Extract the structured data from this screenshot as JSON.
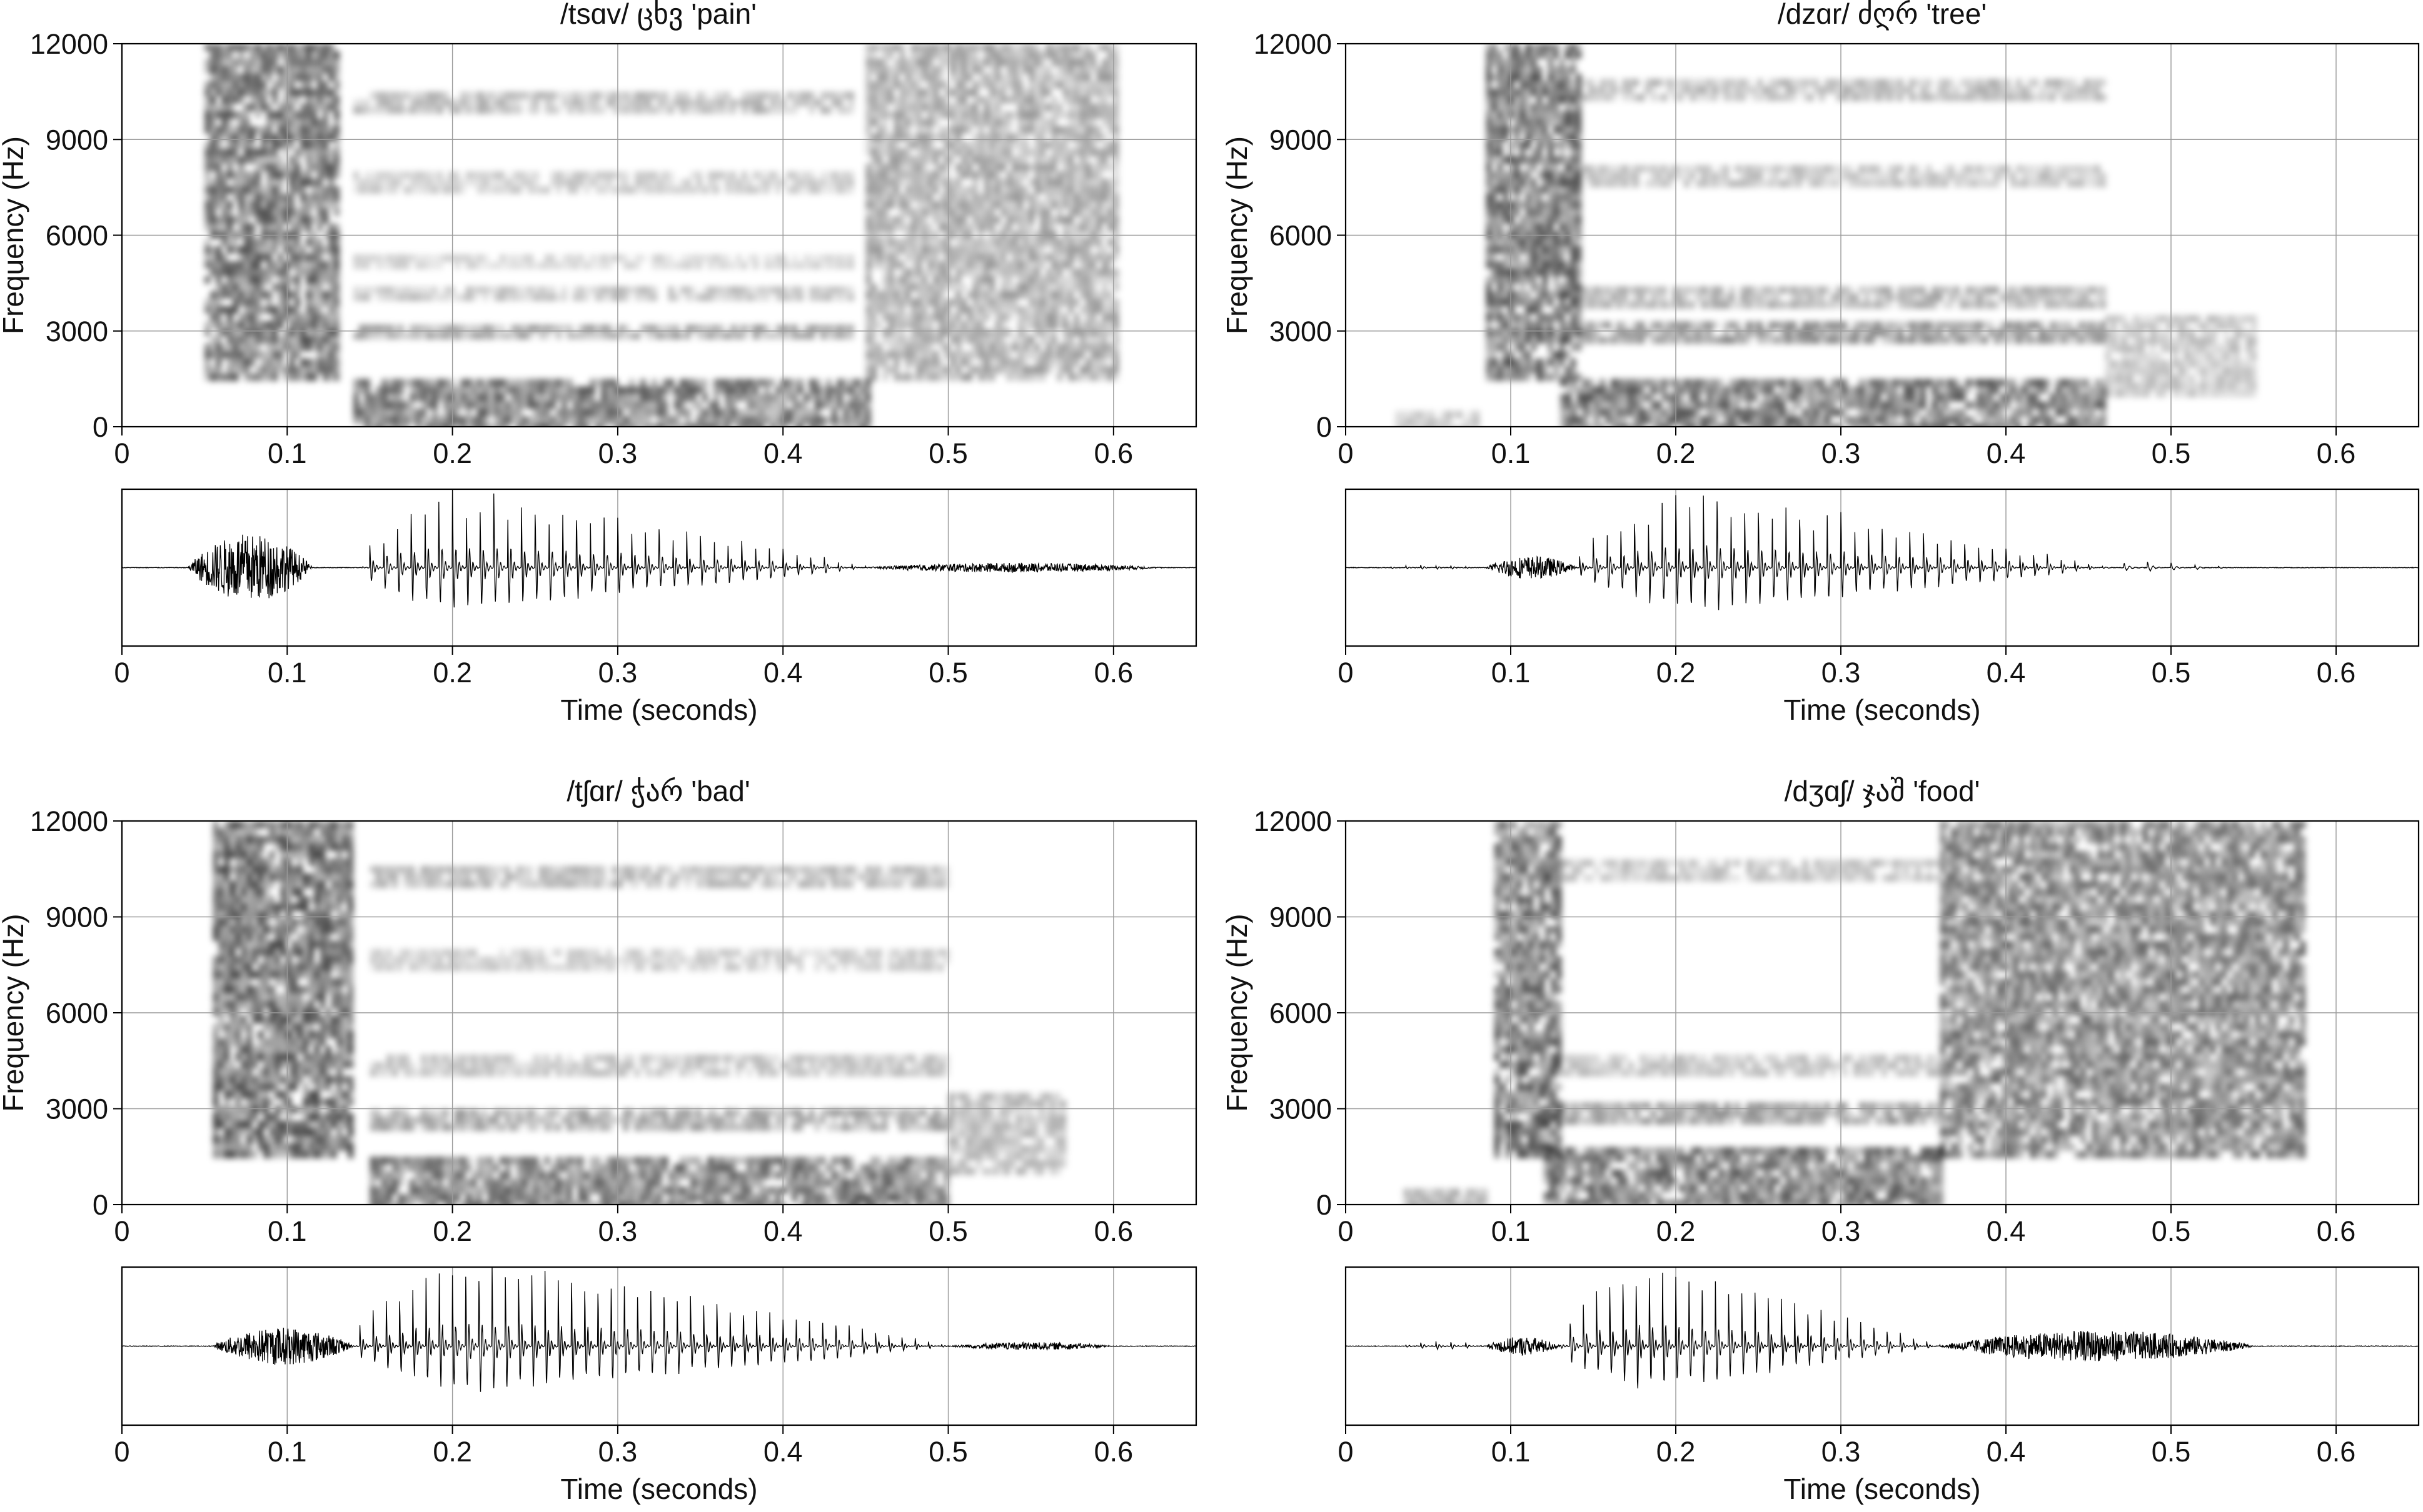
{
  "figure": {
    "panels": [
      {
        "title": "/tsɑv/ ცხვ 'pain'"
      },
      {
        "title": "/dzɑr/ ძღრ 'tree'"
      },
      {
        "title": "/tʃɑr/ ჭარ 'bad'"
      },
      {
        "title": "/dʒɑʃ/ ჯაშ 'food'"
      }
    ]
  },
  "chart_data": [
    {
      "type": "heatmap",
      "kind": "spectrogram",
      "title": "/tsɑv/ ცხვ 'pain'",
      "xlabel": "",
      "ylabel": "Frequency (Hz)",
      "xlim": [
        0,
        0.65
      ],
      "ylim": [
        0,
        12000
      ],
      "x_ticks": [
        0,
        0.1,
        0.2,
        0.3,
        0.4,
        0.5,
        0.6
      ],
      "y_ticks": [
        0,
        3000,
        6000,
        9000,
        12000
      ],
      "grid": true,
      "regions": [
        {
          "label": "frication",
          "t": [
            0.05,
            0.13
          ],
          "f": [
            1500,
            12000
          ],
          "intensity": 0.85
        },
        {
          "label": "vowel",
          "t": [
            0.14,
            0.45
          ],
          "f": [
            0,
            1500
          ],
          "intensity": 0.8
        },
        {
          "label": "formant",
          "t": [
            0.14,
            0.44
          ],
          "f": [
            2800,
            3200
          ],
          "intensity": 0.5
        },
        {
          "label": "formant",
          "t": [
            0.14,
            0.44
          ],
          "f": [
            4000,
            4400
          ],
          "intensity": 0.35
        },
        {
          "label": "formant",
          "t": [
            0.14,
            0.44
          ],
          "f": [
            5000,
            5400
          ],
          "intensity": 0.25
        },
        {
          "label": "formant",
          "t": [
            0.14,
            0.44
          ],
          "f": [
            7400,
            8000
          ],
          "intensity": 0.3
        },
        {
          "label": "formant",
          "t": [
            0.14,
            0.44
          ],
          "f": [
            9900,
            10500
          ],
          "intensity": 0.4
        },
        {
          "label": "frication",
          "t": [
            0.45,
            0.6
          ],
          "f": [
            1500,
            12000
          ],
          "intensity": 0.5
        }
      ]
    },
    {
      "type": "line",
      "kind": "waveform",
      "xlabel": "Time (seconds)",
      "xlim": [
        0,
        0.65
      ],
      "x_ticks": [
        0,
        0.1,
        0.2,
        0.3,
        0.4,
        0.5,
        0.6
      ],
      "grid": true,
      "segments": [
        {
          "t": [
            0.04,
            0.115
          ],
          "type": "noise",
          "amp": 0.45
        },
        {
          "t": [
            0.145,
            0.45
          ],
          "type": "voiced",
          "amp": 0.95,
          "f0": 120,
          "peak": 0.2
        },
        {
          "t": [
            0.45,
            0.63
          ],
          "type": "noise",
          "amp": 0.06
        }
      ]
    },
    {
      "type": "heatmap",
      "kind": "spectrogram",
      "title": "/dzɑr/ ძღრ 'tree'",
      "xlabel": "",
      "ylabel": "Frequency (Hz)",
      "xlim": [
        0,
        0.65
      ],
      "ylim": [
        0,
        12000
      ],
      "x_ticks": [
        0,
        0.1,
        0.2,
        0.3,
        0.4,
        0.5,
        0.6
      ],
      "y_ticks": [
        0,
        3000,
        6000,
        9000,
        12000
      ],
      "grid": true,
      "regions": [
        {
          "label": "voice bar",
          "t": [
            0.03,
            0.08
          ],
          "f": [
            0,
            500
          ],
          "intensity": 0.35
        },
        {
          "label": "frication",
          "t": [
            0.085,
            0.14
          ],
          "f": [
            1500,
            12000
          ],
          "intensity": 0.85
        },
        {
          "label": "vowel",
          "t": [
            0.13,
            0.46
          ],
          "f": [
            0,
            1500
          ],
          "intensity": 0.85
        },
        {
          "label": "formant",
          "t": [
            0.13,
            0.46
          ],
          "f": [
            2700,
            3300
          ],
          "intensity": 0.6
        },
        {
          "label": "formant",
          "t": [
            0.13,
            0.46
          ],
          "f": [
            3800,
            4400
          ],
          "intensity": 0.45
        },
        {
          "label": "formant",
          "t": [
            0.13,
            0.46
          ],
          "f": [
            7500,
            8200
          ],
          "intensity": 0.35
        },
        {
          "label": "formant",
          "t": [
            0.13,
            0.46
          ],
          "f": [
            10200,
            10900
          ],
          "intensity": 0.4
        },
        {
          "label": "trill",
          "t": [
            0.46,
            0.55
          ],
          "f": [
            1000,
            3500
          ],
          "intensity": 0.35
        }
      ]
    },
    {
      "type": "line",
      "kind": "waveform",
      "xlabel": "Time (seconds)",
      "xlim": [
        0,
        0.65
      ],
      "x_ticks": [
        0,
        0.1,
        0.2,
        0.3,
        0.4,
        0.5,
        0.6
      ],
      "grid": true,
      "segments": [
        {
          "t": [
            0.02,
            0.085
          ],
          "type": "voiced",
          "amp": 0.04,
          "f0": 110,
          "peak": 0.05
        },
        {
          "t": [
            0.085,
            0.14
          ],
          "type": "noise",
          "amp": 0.15
        },
        {
          "t": [
            0.14,
            0.46
          ],
          "type": "voiced",
          "amp": 0.95,
          "f0": 120,
          "peak": 0.21
        },
        {
          "t": [
            0.46,
            0.54
          ],
          "type": "voiced",
          "amp": 0.08,
          "f0": 70,
          "peak": 0.48
        }
      ]
    },
    {
      "type": "heatmap",
      "kind": "spectrogram",
      "title": "/tʃɑr/ ჭარ 'bad'",
      "xlabel": "",
      "ylabel": "Frequency (Hz)",
      "xlim": [
        0,
        0.65
      ],
      "ylim": [
        0,
        12000
      ],
      "x_ticks": [
        0,
        0.1,
        0.2,
        0.3,
        0.4,
        0.5,
        0.6
      ],
      "y_ticks": [
        0,
        3000,
        6000,
        9000,
        12000
      ],
      "grid": true,
      "regions": [
        {
          "label": "frication",
          "t": [
            0.055,
            0.14
          ],
          "f": [
            1500,
            12000
          ],
          "intensity": 0.9
        },
        {
          "label": "vowel",
          "t": [
            0.15,
            0.5
          ],
          "f": [
            0,
            1500
          ],
          "intensity": 0.8
        },
        {
          "label": "formant",
          "t": [
            0.15,
            0.5
          ],
          "f": [
            2500,
            3000
          ],
          "intensity": 0.5
        },
        {
          "label": "formant",
          "t": [
            0.15,
            0.5
          ],
          "f": [
            4200,
            4700
          ],
          "intensity": 0.35
        },
        {
          "label": "formant",
          "t": [
            0.15,
            0.5
          ],
          "f": [
            7400,
            8000
          ],
          "intensity": 0.3
        },
        {
          "label": "formant",
          "t": [
            0.15,
            0.5
          ],
          "f": [
            10000,
            10600
          ],
          "intensity": 0.4
        },
        {
          "label": "trill",
          "t": [
            0.5,
            0.57
          ],
          "f": [
            1000,
            3500
          ],
          "intensity": 0.4
        }
      ]
    },
    {
      "type": "line",
      "kind": "waveform",
      "xlabel": "Time (seconds)",
      "xlim": [
        0,
        0.65
      ],
      "x_ticks": [
        0,
        0.1,
        0.2,
        0.3,
        0.4,
        0.5,
        0.6
      ],
      "grid": true,
      "segments": [
        {
          "t": [
            0.055,
            0.14
          ],
          "type": "noise",
          "amp": 0.25
        },
        {
          "t": [
            0.14,
            0.5
          ],
          "type": "voiced",
          "amp": 1.0,
          "f0": 125,
          "peak": 0.21
        },
        {
          "t": [
            0.5,
            0.6
          ],
          "type": "noise",
          "amp": 0.05
        }
      ]
    },
    {
      "type": "heatmap",
      "kind": "spectrogram",
      "title": "/dʒɑʃ/ ჯაშ 'food'",
      "xlabel": "",
      "ylabel": "Frequency (Hz)",
      "xlim": [
        0,
        0.65
      ],
      "ylim": [
        0,
        12000
      ],
      "x_ticks": [
        0,
        0.1,
        0.2,
        0.3,
        0.4,
        0.5,
        0.6
      ],
      "y_ticks": [
        0,
        3000,
        6000,
        9000,
        12000
      ],
      "grid": true,
      "regions": [
        {
          "label": "voice bar",
          "t": [
            0.035,
            0.085
          ],
          "f": [
            0,
            500
          ],
          "intensity": 0.45
        },
        {
          "label": "frication",
          "t": [
            0.09,
            0.13
          ],
          "f": [
            1500,
            12000
          ],
          "intensity": 0.85
        },
        {
          "label": "vowel",
          "t": [
            0.12,
            0.36
          ],
          "f": [
            0,
            1800
          ],
          "intensity": 0.85
        },
        {
          "label": "formant",
          "t": [
            0.12,
            0.36
          ],
          "f": [
            2700,
            3200
          ],
          "intensity": 0.55
        },
        {
          "label": "formant",
          "t": [
            0.12,
            0.36
          ],
          "f": [
            4200,
            4700
          ],
          "intensity": 0.35
        },
        {
          "label": "formant",
          "t": [
            0.12,
            0.36
          ],
          "f": [
            10200,
            10800
          ],
          "intensity": 0.35
        },
        {
          "label": "frication",
          "t": [
            0.36,
            0.58
          ],
          "f": [
            1500,
            12000
          ],
          "intensity": 0.75
        }
      ]
    },
    {
      "type": "line",
      "kind": "waveform",
      "xlabel": "Time (seconds)",
      "xlim": [
        0,
        0.65
      ],
      "x_ticks": [
        0,
        0.1,
        0.2,
        0.3,
        0.4,
        0.5,
        0.6
      ],
      "grid": true,
      "segments": [
        {
          "t": [
            0.035,
            0.085
          ],
          "type": "voiced",
          "amp": 0.08,
          "f0": 110,
          "peak": 0.06
        },
        {
          "t": [
            0.085,
            0.13
          ],
          "type": "noise",
          "amp": 0.12
        },
        {
          "t": [
            0.13,
            0.36
          ],
          "type": "voiced",
          "amp": 0.95,
          "f0": 125,
          "peak": 0.18
        },
        {
          "t": [
            0.36,
            0.55
          ],
          "type": "noise",
          "amp": 0.2
        }
      ]
    }
  ]
}
